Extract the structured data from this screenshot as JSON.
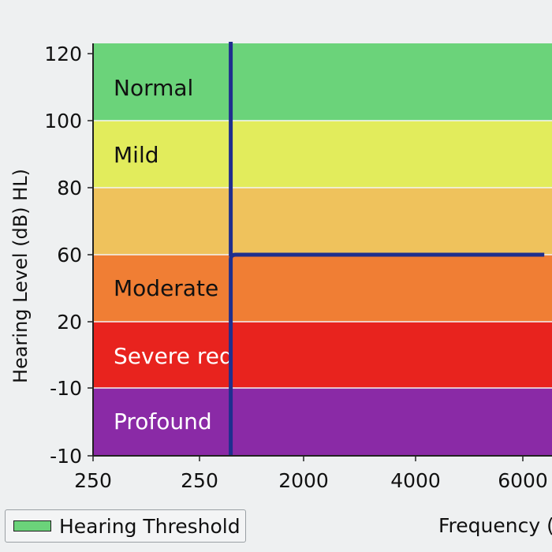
{
  "chart_data": {
    "type": "area",
    "title": "",
    "xlabel": "Frequency (",
    "ylabel": "Hearing Level (dB) HL)",
    "x_tick_labels": [
      "250",
      "250",
      "2000",
      "4000",
      "6000"
    ],
    "y_tick_labels": [
      "120",
      "100",
      "80",
      "60",
      "20",
      "-10",
      "-10"
    ],
    "bands": [
      {
        "label": "Normal",
        "color": "#6bd37a",
        "text_color": "#111111"
      },
      {
        "label": "Mild",
        "color": "#e2ec5c",
        "text_color": "#111111"
      },
      {
        "label": "",
        "color": "#efc25c",
        "text_color": "#111111"
      },
      {
        "label": "Moderate",
        "color": "#f07e34",
        "text_color": "#111111"
      },
      {
        "label": "Severe red",
        "color": "#e8231e",
        "text_color": "#ffffff"
      },
      {
        "label": "Profound",
        "color": "#8a2aa6",
        "text_color": "#ffffff"
      }
    ],
    "series": [
      {
        "name": "Hearing Threshold",
        "color": "#1f2f8e",
        "points": [
          {
            "x_tick": 1.3,
            "y_tick": -0.3
          },
          {
            "x_tick": 1.3,
            "y_tick": 3
          },
          {
            "x_tick": 4.2,
            "y_tick": 3
          }
        ]
      }
    ],
    "legend": {
      "label": "Hearing Threshold",
      "swatch_color": "#6bd37a",
      "position": "bottom-left"
    },
    "grid": false
  }
}
